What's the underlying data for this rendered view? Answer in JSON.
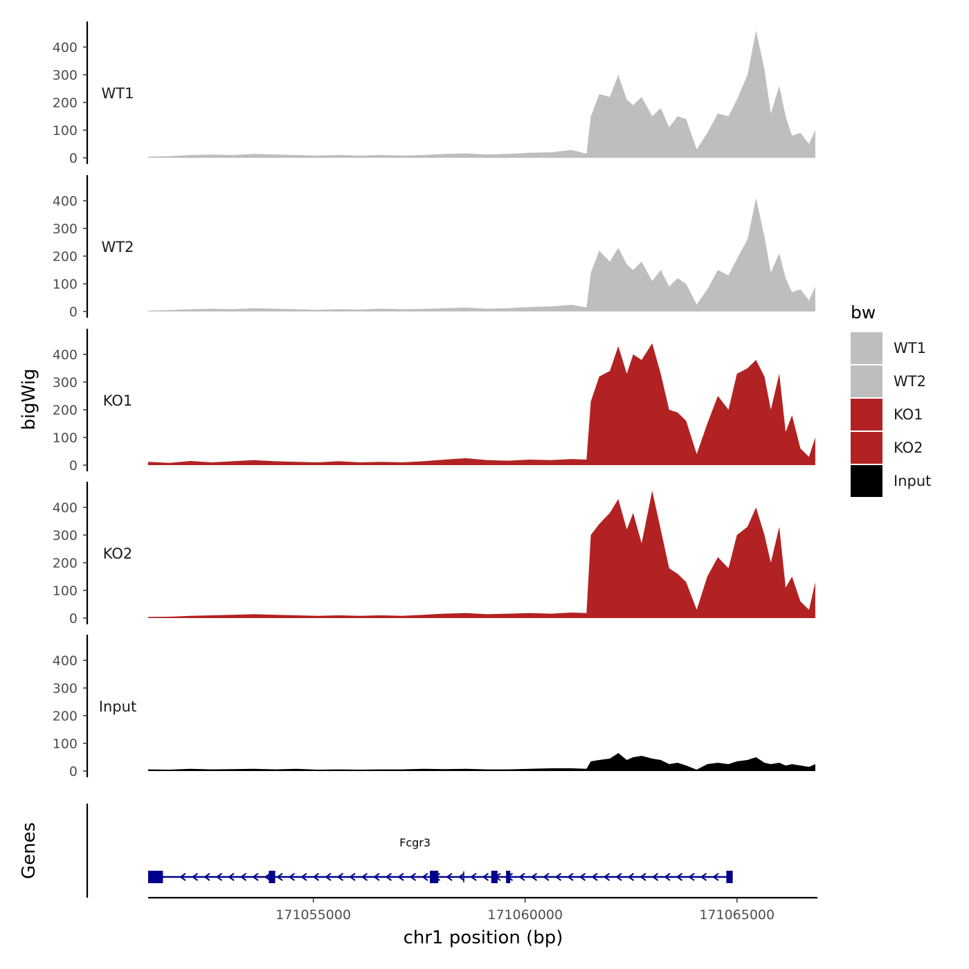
{
  "chart_data": {
    "type": "area",
    "ylabel": "bigWig",
    "xlabel": "chr1 position (bp)",
    "chromosome": "chr1",
    "xlim": [
      171051100,
      171066900
    ],
    "ylim": [
      0,
      480
    ],
    "yticks": [
      0,
      100,
      200,
      300,
      400
    ],
    "xticks": [
      171055000,
      171060000,
      171065000
    ],
    "xtick_labels": [
      "171055000",
      "171060000",
      "171065000"
    ],
    "legend": {
      "title": "bw",
      "entries": [
        {
          "label": "WT1",
          "color": "#bebebe"
        },
        {
          "label": "WT2",
          "color": "#bebebe"
        },
        {
          "label": "KO1",
          "color": "#b22222"
        },
        {
          "label": "KO2",
          "color": "#b22222"
        },
        {
          "label": "Input",
          "color": "#000000"
        }
      ]
    },
    "series": [
      {
        "name": "WT1",
        "color": "#bebebe",
        "x": [
          171051100,
          171051600,
          171052100,
          171052600,
          171053100,
          171053600,
          171054100,
          171054600,
          171055100,
          171055600,
          171056100,
          171056600,
          171057100,
          171057600,
          171058100,
          171058600,
          171059100,
          171059600,
          171060100,
          171060600,
          171061100,
          171061450,
          171061550,
          171061750,
          171062000,
          171062200,
          171062400,
          171062550,
          171062750,
          171063000,
          171063200,
          171063400,
          171063600,
          171063800,
          171064050,
          171064300,
          171064550,
          171064800,
          171065000,
          171065250,
          171065450,
          171065650,
          171065800,
          171066000,
          171066150,
          171066300,
          171066500,
          171066700,
          171066850
        ],
        "values": [
          4,
          6,
          10,
          12,
          10,
          14,
          12,
          10,
          8,
          10,
          8,
          10,
          8,
          10,
          14,
          16,
          12,
          14,
          18,
          20,
          28,
          15,
          150,
          230,
          220,
          300,
          210,
          190,
          220,
          150,
          180,
          110,
          150,
          140,
          30,
          90,
          160,
          150,
          210,
          300,
          460,
          320,
          160,
          260,
          150,
          80,
          90,
          50,
          100
        ]
      },
      {
        "name": "WT2",
        "color": "#bebebe",
        "x": [
          171051100,
          171051600,
          171052100,
          171052600,
          171053100,
          171053600,
          171054100,
          171054600,
          171055100,
          171055600,
          171056100,
          171056600,
          171057100,
          171057600,
          171058100,
          171058600,
          171059100,
          171059600,
          171060100,
          171060600,
          171061100,
          171061450,
          171061550,
          171061750,
          171062000,
          171062200,
          171062400,
          171062550,
          171062750,
          171063000,
          171063200,
          171063400,
          171063600,
          171063800,
          171064050,
          171064300,
          171064550,
          171064800,
          171065000,
          171065250,
          171065450,
          171065650,
          171065800,
          171066000,
          171066150,
          171066300,
          171066500,
          171066700,
          171066850
        ],
        "values": [
          3,
          5,
          8,
          10,
          8,
          12,
          10,
          8,
          6,
          8,
          7,
          10,
          8,
          9,
          12,
          14,
          10,
          12,
          16,
          18,
          24,
          14,
          140,
          220,
          180,
          230,
          170,
          150,
          180,
          110,
          150,
          90,
          120,
          100,
          25,
          80,
          150,
          130,
          190,
          260,
          410,
          270,
          140,
          210,
          120,
          70,
          80,
          40,
          90
        ]
      },
      {
        "name": "KO1",
        "color": "#b22222",
        "x": [
          171051100,
          171051600,
          171052100,
          171052600,
          171053100,
          171053600,
          171054100,
          171054600,
          171055100,
          171055600,
          171056100,
          171056600,
          171057100,
          171057600,
          171058100,
          171058600,
          171059100,
          171059600,
          171060100,
          171060600,
          171061100,
          171061450,
          171061550,
          171061750,
          171062000,
          171062200,
          171062400,
          171062550,
          171062750,
          171063000,
          171063200,
          171063400,
          171063600,
          171063800,
          171064050,
          171064300,
          171064550,
          171064800,
          171065000,
          171065250,
          171065450,
          171065650,
          171065800,
          171066000,
          171066150,
          171066300,
          171066500,
          171066700,
          171066850
        ],
        "values": [
          12,
          8,
          15,
          10,
          14,
          18,
          14,
          12,
          10,
          14,
          10,
          12,
          10,
          14,
          20,
          25,
          18,
          16,
          20,
          18,
          22,
          20,
          230,
          320,
          340,
          430,
          330,
          400,
          380,
          440,
          330,
          200,
          190,
          160,
          40,
          150,
          250,
          200,
          330,
          350,
          380,
          320,
          200,
          330,
          120,
          180,
          60,
          30,
          100
        ]
      },
      {
        "name": "KO2",
        "color": "#b22222",
        "x": [
          171051100,
          171051600,
          171052100,
          171052600,
          171053100,
          171053600,
          171054100,
          171054600,
          171055100,
          171055600,
          171056100,
          171056600,
          171057100,
          171057600,
          171058100,
          171058600,
          171059100,
          171059600,
          171060100,
          171060600,
          171061100,
          171061450,
          171061550,
          171061750,
          171062000,
          171062200,
          171062400,
          171062550,
          171062750,
          171063000,
          171063200,
          171063400,
          171063600,
          171063800,
          171064050,
          171064300,
          171064550,
          171064800,
          171065000,
          171065250,
          171065450,
          171065650,
          171065800,
          171066000,
          171066150,
          171066300,
          171066500,
          171066700,
          171066850
        ],
        "values": [
          4,
          5,
          8,
          10,
          12,
          14,
          12,
          10,
          8,
          10,
          8,
          10,
          8,
          12,
          16,
          18,
          14,
          16,
          18,
          16,
          20,
          18,
          300,
          340,
          380,
          430,
          320,
          380,
          270,
          460,
          320,
          180,
          160,
          130,
          30,
          150,
          220,
          180,
          300,
          330,
          400,
          300,
          200,
          330,
          110,
          150,
          60,
          30,
          130
        ]
      },
      {
        "name": "Input",
        "color": "#000000",
        "x": [
          171051100,
          171051600,
          171052100,
          171052600,
          171053100,
          171053600,
          171054100,
          171054600,
          171055100,
          171055600,
          171056100,
          171056600,
          171057100,
          171057600,
          171058100,
          171058600,
          171059100,
          171059600,
          171060100,
          171060600,
          171061100,
          171061450,
          171061550,
          171061750,
          171062000,
          171062200,
          171062400,
          171062550,
          171062750,
          171063000,
          171063200,
          171063400,
          171063600,
          171063800,
          171064050,
          171064300,
          171064550,
          171064800,
          171065000,
          171065250,
          171065450,
          171065650,
          171065800,
          171066000,
          171066150,
          171066300,
          171066500,
          171066700,
          171066850
        ],
        "values": [
          6,
          5,
          8,
          6,
          7,
          8,
          6,
          8,
          5,
          6,
          5,
          6,
          6,
          8,
          7,
          8,
          6,
          6,
          8,
          10,
          10,
          8,
          35,
          40,
          45,
          65,
          40,
          50,
          55,
          45,
          40,
          25,
          30,
          20,
          5,
          25,
          30,
          25,
          35,
          40,
          50,
          30,
          25,
          30,
          20,
          25,
          20,
          15,
          25
        ]
      }
    ]
  },
  "genes": {
    "title": "Genes",
    "gene_label": "Fcgr3",
    "start": 171051100,
    "end": 171064900,
    "color": "#00008b",
    "exons": [
      {
        "start": 171051100,
        "end": 171051450
      },
      {
        "start": 171053950,
        "end": 171054100
      },
      {
        "start": 171057750,
        "end": 171057950
      },
      {
        "start": 171059200,
        "end": 171059350
      },
      {
        "start": 171059550,
        "end": 171059650
      },
      {
        "start": 171064750,
        "end": 171064900
      }
    ]
  }
}
